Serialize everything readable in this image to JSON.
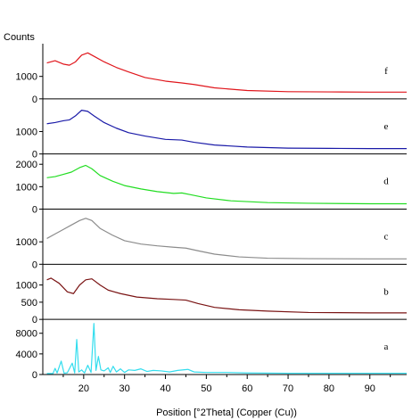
{
  "chart_data": {
    "type": "line",
    "ylabel": "Counts",
    "xlabel": "Position [°2Theta] (Copper (Cu))",
    "xlim": [
      10,
      99
    ],
    "x_ticks": [
      20,
      30,
      40,
      50,
      60,
      70,
      80,
      90
    ],
    "grid": false,
    "panels": [
      {
        "label": "f",
        "color": "#e0161c",
        "ylim": [
          0,
          2300
        ],
        "y_ticks": [
          0,
          1000
        ],
        "series": {
          "x": [
            11,
            13,
            15,
            16.5,
            18,
            19.5,
            21,
            22.5,
            25,
            28,
            31,
            35,
            40,
            44,
            47,
            52,
            60,
            70,
            80,
            90,
            99
          ],
          "y": [
            1600,
            1700,
            1550,
            1500,
            1650,
            1950,
            2050,
            1900,
            1650,
            1400,
            1200,
            950,
            790,
            710,
            640,
            490,
            370,
            320,
            310,
            300,
            300
          ]
        }
      },
      {
        "label": "e",
        "color": "#1a1aa8",
        "ylim": [
          0,
          2300
        ],
        "y_ticks": [
          0,
          1000
        ],
        "series": {
          "x": [
            11,
            13,
            15,
            16.5,
            18,
            19.5,
            21,
            22.5,
            25,
            28,
            31,
            35,
            40,
            44,
            47,
            52,
            60,
            70,
            80,
            90,
            99
          ],
          "y": [
            1350,
            1400,
            1480,
            1520,
            1700,
            1950,
            1900,
            1700,
            1400,
            1150,
            950,
            800,
            650,
            620,
            520,
            400,
            310,
            260,
            250,
            240,
            240
          ]
        }
      },
      {
        "label": "d",
        "color": "#22dd22",
        "ylim": [
          0,
          2300
        ],
        "y_ticks": [
          0,
          1000,
          2000
        ],
        "series": {
          "x": [
            11,
            13,
            15,
            17,
            19,
            20.5,
            22,
            24,
            27,
            30,
            34,
            38,
            42,
            44,
            46,
            50,
            56,
            65,
            75,
            90,
            99
          ],
          "y": [
            1400,
            1450,
            1550,
            1650,
            1850,
            1950,
            1800,
            1500,
            1250,
            1050,
            900,
            780,
            700,
            720,
            650,
            500,
            370,
            290,
            260,
            240,
            240
          ]
        }
      },
      {
        "label": "c",
        "color": "#8c8c8c",
        "ylim": [
          0,
          2300
        ],
        "y_ticks": [
          0,
          1000
        ],
        "series": {
          "x": [
            11,
            13,
            15,
            17,
            19,
            20.5,
            22,
            24,
            27,
            30,
            34,
            38,
            42,
            45,
            48,
            52,
            58,
            65,
            75,
            90,
            99
          ],
          "y": [
            1150,
            1350,
            1550,
            1750,
            1950,
            2050,
            1950,
            1600,
            1300,
            1050,
            900,
            820,
            760,
            720,
            600,
            450,
            330,
            270,
            250,
            240,
            240
          ]
        }
      },
      {
        "label": "b",
        "color": "#7a1414",
        "ylim": [
          0,
          1500
        ],
        "y_ticks": [
          0,
          500,
          1000
        ],
        "series": {
          "x": [
            11,
            12,
            14,
            16,
            17.5,
            19,
            20.5,
            22,
            24,
            26,
            29,
            33,
            38,
            42,
            45,
            48,
            52,
            58,
            65,
            75,
            90,
            99
          ],
          "y": [
            1150,
            1200,
            1050,
            800,
            750,
            1000,
            1150,
            1180,
            1000,
            850,
            750,
            650,
            600,
            580,
            560,
            460,
            350,
            280,
            240,
            200,
            190,
            190
          ]
        }
      },
      {
        "label": "a",
        "color": "#33ddee",
        "ylim": [
          0,
          10000
        ],
        "y_ticks": [
          0,
          4000,
          8000
        ],
        "series": {
          "x": [
            11,
            12.5,
            13,
            13.5,
            14.5,
            15.2,
            16,
            17.2,
            17.8,
            18.3,
            18.8,
            19.5,
            20.2,
            21,
            21.8,
            22.5,
            23,
            23.6,
            24.2,
            25,
            26,
            26.5,
            27.2,
            28,
            29,
            30,
            31,
            32.5,
            34,
            35.5,
            37,
            39,
            41,
            43,
            45.5,
            47,
            50,
            55,
            60,
            70,
            80,
            90,
            99
          ],
          "y": [
            200,
            200,
            1200,
            300,
            2600,
            250,
            350,
            2200,
            300,
            6800,
            500,
            900,
            300,
            1800,
            400,
            9900,
            800,
            3500,
            900,
            700,
            1300,
            400,
            1600,
            500,
            1100,
            400,
            900,
            800,
            1100,
            600,
            800,
            700,
            500,
            800,
            1000,
            500,
            400,
            400,
            300,
            250,
            250,
            250,
            250
          ]
        }
      }
    ]
  }
}
